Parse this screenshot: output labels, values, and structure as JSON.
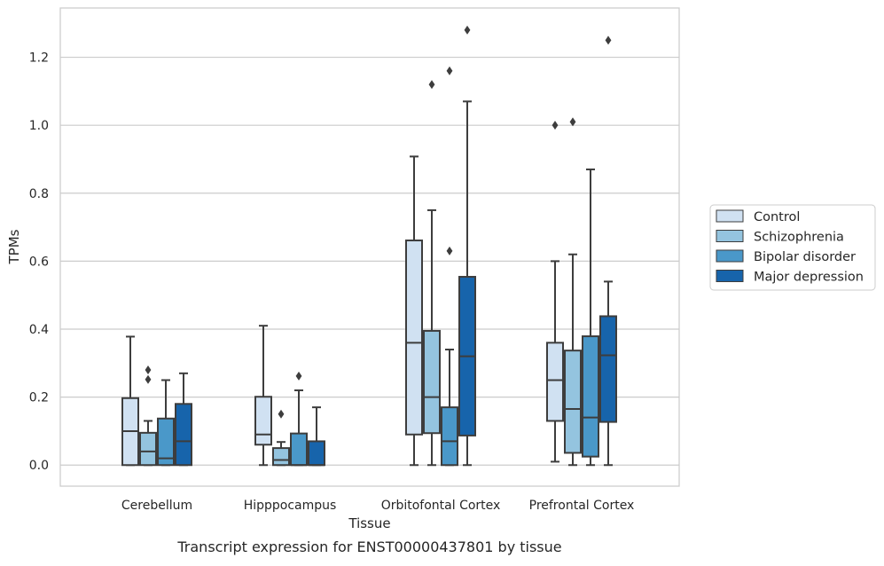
{
  "chart_data": {
    "type": "boxplot",
    "caption": "Transcript expression for ENST00000437801 by tissue",
    "xlabel": "Tissue",
    "ylabel": "TPMs",
    "ylim": [
      -0.062,
      1.345
    ],
    "yticks": [
      0.0,
      0.2,
      0.4,
      0.6,
      0.8,
      1.0,
      1.2
    ],
    "ytick_labels": [
      "0.0",
      "0.2",
      "0.4",
      "0.6",
      "0.8",
      "1.0",
      "1.2"
    ],
    "grid": "horizontal",
    "legend_position": "right",
    "categories": [
      "Cerebellum",
      "Hipppocampus",
      "Orbitofontal Cortex",
      "Prefrontal Cortex"
    ],
    "series": [
      {
        "name": "Control",
        "color": "#d0e1f2",
        "boxes": [
          {
            "whisker_low": 0.0,
            "q1": 0.0,
            "median": 0.1,
            "q3": 0.197,
            "whisker_high": 0.378,
            "outliers": []
          },
          {
            "whisker_low": 0.0,
            "q1": 0.06,
            "median": 0.09,
            "q3": 0.201,
            "whisker_high": 0.41,
            "outliers": []
          },
          {
            "whisker_low": 0.0,
            "q1": 0.09,
            "median": 0.36,
            "q3": 0.661,
            "whisker_high": 0.908,
            "outliers": []
          },
          {
            "whisker_low": 0.01,
            "q1": 0.13,
            "median": 0.25,
            "q3": 0.36,
            "whisker_high": 0.6,
            "outliers": [
              1.0
            ]
          }
        ]
      },
      {
        "name": "Schizophrenia",
        "color": "#94c4df",
        "boxes": [
          {
            "whisker_low": 0.0,
            "q1": 0.0,
            "median": 0.04,
            "q3": 0.095,
            "whisker_high": 0.13,
            "outliers": [
              0.252,
              0.28
            ]
          },
          {
            "whisker_low": 0.0,
            "q1": 0.0,
            "median": 0.015,
            "q3": 0.05,
            "whisker_high": 0.068,
            "outliers": [
              0.15
            ]
          },
          {
            "whisker_low": 0.0,
            "q1": 0.094,
            "median": 0.2,
            "q3": 0.395,
            "whisker_high": 0.75,
            "outliers": [
              1.12
            ]
          },
          {
            "whisker_low": 0.0,
            "q1": 0.036,
            "median": 0.165,
            "q3": 0.337,
            "whisker_high": 0.62,
            "outliers": [
              1.01
            ]
          }
        ]
      },
      {
        "name": "Bipolar disorder",
        "color": "#4a98c9",
        "boxes": [
          {
            "whisker_low": 0.0,
            "q1": 0.0,
            "median": 0.02,
            "q3": 0.137,
            "whisker_high": 0.25,
            "outliers": []
          },
          {
            "whisker_low": 0.0,
            "q1": 0.0,
            "median": 0.0,
            "q3": 0.093,
            "whisker_high": 0.22,
            "outliers": [
              0.262
            ]
          },
          {
            "whisker_low": 0.0,
            "q1": 0.0,
            "median": 0.07,
            "q3": 0.17,
            "whisker_high": 0.34,
            "outliers": [
              0.63,
              1.16
            ]
          },
          {
            "whisker_low": 0.0,
            "q1": 0.025,
            "median": 0.14,
            "q3": 0.379,
            "whisker_high": 0.87,
            "outliers": []
          }
        ]
      },
      {
        "name": "Major depression",
        "color": "#1764ab",
        "boxes": [
          {
            "whisker_low": 0.0,
            "q1": 0.0,
            "median": 0.07,
            "q3": 0.18,
            "whisker_high": 0.27,
            "outliers": []
          },
          {
            "whisker_low": 0.0,
            "q1": 0.0,
            "median": 0.0,
            "q3": 0.07,
            "whisker_high": 0.17,
            "outliers": []
          },
          {
            "whisker_low": 0.0,
            "q1": 0.087,
            "median": 0.32,
            "q3": 0.554,
            "whisker_high": 1.07,
            "outliers": [
              1.28
            ]
          },
          {
            "whisker_low": 0.0,
            "q1": 0.127,
            "median": 0.323,
            "q3": 0.438,
            "whisker_high": 0.54,
            "outliers": [
              1.25
            ]
          }
        ]
      }
    ]
  }
}
